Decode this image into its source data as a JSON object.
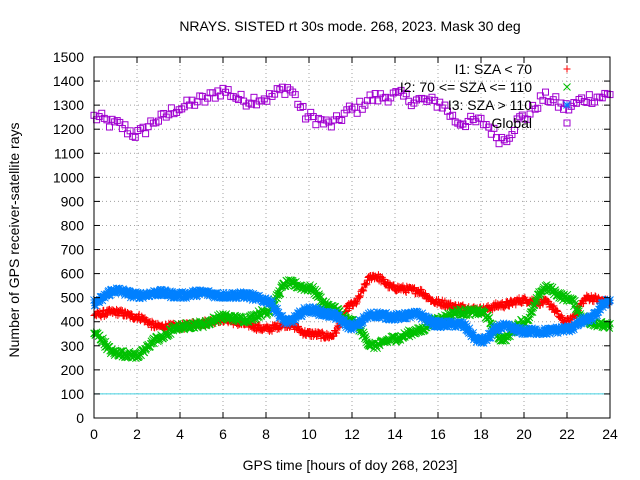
{
  "chart_data": {
    "type": "scatter",
    "title": "NRAYS. SISTED rt 30s mode. 268, 2023. Mask 30 deg",
    "xlabel": "GPS time [hours of doy 268, 2023]",
    "ylabel": "Number of GPS receiver-satellite rays",
    "xlim": [
      0,
      24
    ],
    "ylim": [
      0,
      1500
    ],
    "x_ticks": [
      0,
      2,
      4,
      6,
      8,
      10,
      12,
      14,
      16,
      18,
      20,
      22,
      24
    ],
    "y_ticks": [
      0,
      100,
      200,
      300,
      400,
      500,
      600,
      700,
      800,
      900,
      1000,
      1100,
      1200,
      1300,
      1400,
      1500
    ],
    "grid": true,
    "legend_position": "top-right",
    "reference_line": {
      "y": 100,
      "color": "#40d0e0"
    },
    "series": [
      {
        "name": "I1: SZA < 70",
        "marker": "+",
        "color": "#ff0000",
        "x": [
          0,
          1,
          2,
          3,
          4,
          5,
          6,
          7,
          8,
          9,
          10,
          11,
          12,
          13,
          14,
          15,
          16,
          17,
          18,
          19,
          20,
          21,
          22,
          23,
          24
        ],
        "y": [
          430,
          440,
          420,
          380,
          380,
          395,
          410,
          390,
          370,
          390,
          350,
          340,
          470,
          590,
          540,
          530,
          480,
          460,
          450,
          470,
          490,
          480,
          400,
          500,
          480
        ]
      },
      {
        "name": "I2: 70 <= SZA <= 110",
        "marker": "x",
        "color": "#00c000",
        "x": [
          0,
          1,
          2,
          3,
          4,
          5,
          6,
          7,
          8,
          9,
          10,
          11,
          12,
          13,
          14,
          15,
          16,
          17,
          18,
          19,
          20,
          21,
          22,
          23,
          24
        ],
        "y": [
          350,
          270,
          260,
          330,
          380,
          390,
          420,
          410,
          440,
          560,
          540,
          460,
          400,
          300,
          330,
          360,
          410,
          440,
          440,
          330,
          400,
          540,
          500,
          400,
          380
        ]
      },
      {
        "name": "I3: SZA > 110",
        "marker": "*",
        "color": "#0080ff",
        "x": [
          0,
          1,
          2,
          3,
          4,
          5,
          6,
          7,
          8,
          9,
          10,
          11,
          12,
          13,
          14,
          15,
          16,
          17,
          18,
          19,
          20,
          21,
          22,
          23,
          24
        ],
        "y": [
          480,
          530,
          510,
          520,
          510,
          520,
          510,
          510,
          490,
          400,
          450,
          430,
          380,
          430,
          420,
          430,
          390,
          390,
          320,
          380,
          360,
          360,
          370,
          410,
          490
        ]
      },
      {
        "name": "Global",
        "marker": "square",
        "color": "#a000d0",
        "x": [
          0,
          1,
          2,
          3,
          4,
          5,
          6,
          7,
          8,
          9,
          10,
          11,
          12,
          13,
          14,
          15,
          16,
          17,
          18,
          19,
          20,
          21,
          22,
          23,
          24
        ],
        "y": [
          1250,
          1220,
          1180,
          1240,
          1290,
          1320,
          1360,
          1320,
          1330,
          1370,
          1250,
          1220,
          1280,
          1330,
          1340,
          1320,
          1310,
          1230,
          1230,
          1160,
          1250,
          1330,
          1290,
          1330,
          1340
        ]
      }
    ]
  }
}
